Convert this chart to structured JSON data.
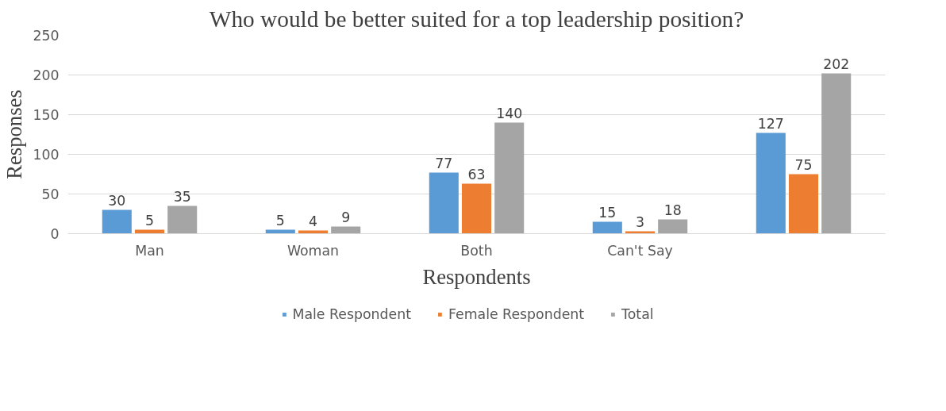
{
  "chart_data": {
    "type": "bar",
    "title": "Who would be better suited for a top leadership position?",
    "xlabel": "Respondents",
    "ylabel": "Responses",
    "categories": [
      "Man",
      "Woman",
      "Both",
      "Can't Say",
      null
    ],
    "series": [
      {
        "name": "Male Respondent",
        "color": "#5b9bd5",
        "values": [
          30,
          5,
          77,
          15,
          127
        ]
      },
      {
        "name": "Female Respondent",
        "color": "#ed7d31",
        "values": [
          5,
          4,
          63,
          3,
          75
        ]
      },
      {
        "name": "Total",
        "color": "#a5a5a5",
        "values": [
          35,
          9,
          140,
          18,
          202
        ]
      }
    ],
    "ylim": [
      0,
      250
    ],
    "yticks": [
      0,
      50,
      100,
      150,
      200,
      250
    ],
    "grid": "y",
    "legend": "bottom",
    "data_labels": true
  }
}
